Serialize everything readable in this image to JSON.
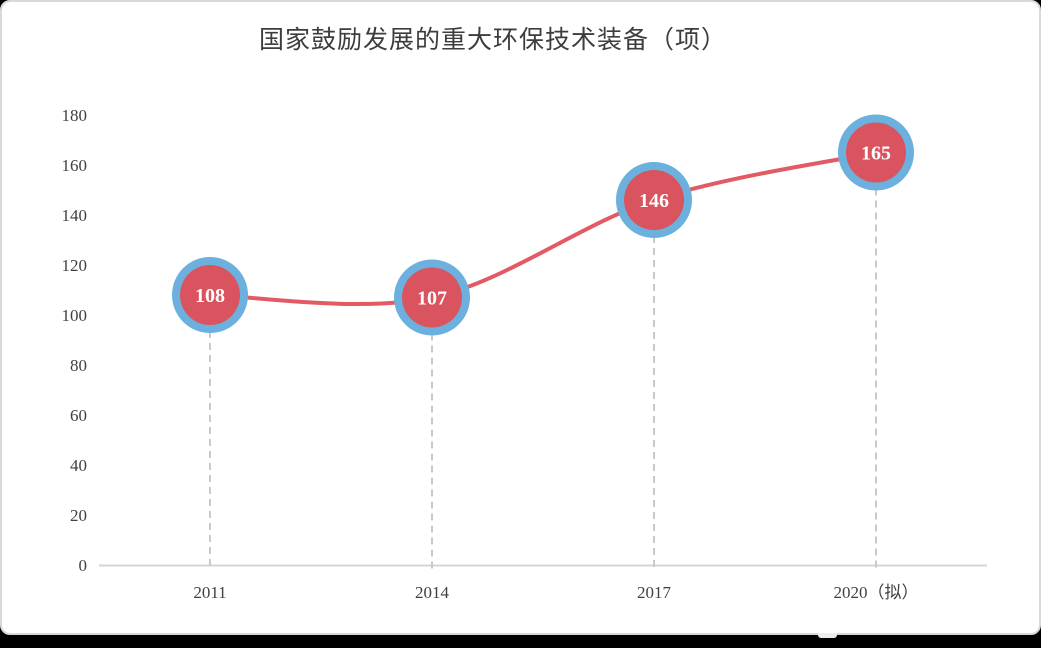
{
  "page": {
    "card_background": "#ffffff",
    "card_border_color": "#d9d9d9",
    "bottom_bar_color": "#000000",
    "notch_color": "#ededed"
  },
  "chart_data": {
    "type": "line",
    "title": "国家鼓励发展的重大环保技术装备（项）",
    "categories": [
      "2011",
      "2014",
      "2017",
      "2020（拟）"
    ],
    "values": [
      108,
      107,
      146,
      165
    ],
    "point_labels": [
      "108",
      "107",
      "146",
      "165"
    ],
    "xlabel": "",
    "ylabel": "",
    "ylim": [
      0,
      180
    ],
    "yticks": [
      0,
      20,
      40,
      60,
      80,
      100,
      120,
      140,
      160,
      180
    ],
    "grid": "off",
    "legend": "none",
    "marker_style": "filled-circle-with-ring",
    "droplines": "dashed-vertical",
    "colors": {
      "line": "#e15a64",
      "marker_fill": "#d9545f",
      "marker_ring": "#6cb0dd",
      "marker_label": "#ffffff",
      "axis": "#d4d4d4",
      "dropline": "#c9c9c9",
      "tick_text": "#3f3f3f",
      "title_text": "#3d3d3d"
    }
  }
}
